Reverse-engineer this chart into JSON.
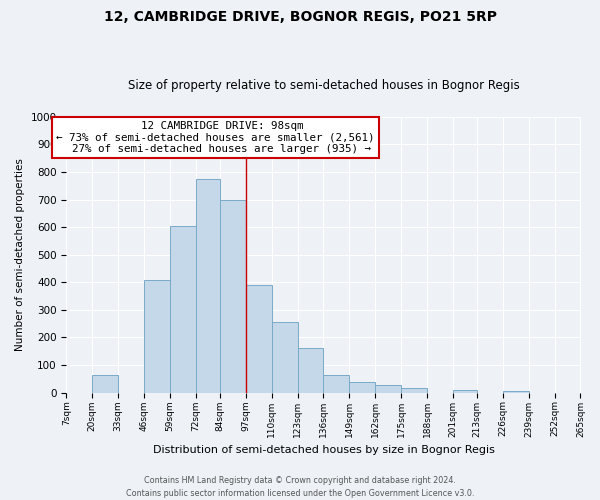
{
  "title": "12, CAMBRIDGE DRIVE, BOGNOR REGIS, PO21 5RP",
  "subtitle": "Size of property relative to semi-detached houses in Bognor Regis",
  "xlabel": "Distribution of semi-detached houses by size in Bognor Regis",
  "ylabel": "Number of semi-detached properties",
  "bin_edges": [
    7,
    20,
    33,
    46,
    59,
    72,
    84,
    97,
    110,
    123,
    136,
    149,
    162,
    175,
    188,
    201,
    213,
    226,
    239,
    252,
    265
  ],
  "bin_labels": [
    "7sqm",
    "20sqm",
    "33sqm",
    "46sqm",
    "59sqm",
    "72sqm",
    "84sqm",
    "97sqm",
    "110sqm",
    "123sqm",
    "136sqm",
    "149sqm",
    "162sqm",
    "175sqm",
    "188sqm",
    "201sqm",
    "213sqm",
    "226sqm",
    "239sqm",
    "252sqm",
    "265sqm"
  ],
  "counts": [
    0,
    65,
    0,
    410,
    605,
    775,
    700,
    390,
    255,
    162,
    65,
    40,
    28,
    18,
    0,
    10,
    0,
    5,
    0,
    0
  ],
  "bar_facecolor": "#c5d8ea",
  "bar_edgecolor": "#7aaac8",
  "property_line_x": 97,
  "property_size": 98,
  "property_label": "12 CAMBRIDGE DRIVE: 98sqm",
  "pct_smaller": 73,
  "n_smaller": 2561,
  "pct_larger": 27,
  "n_larger": 935,
  "ylim": [
    0,
    1000
  ],
  "yticks": [
    0,
    100,
    200,
    300,
    400,
    500,
    600,
    700,
    800,
    900,
    1000
  ],
  "annotation_box_edgecolor": "#cc0000",
  "annotation_box_facecolor": "#ffffff",
  "line_color": "#cc0000",
  "footer1": "Contains HM Land Registry data © Crown copyright and database right 2024.",
  "footer2": "Contains public sector information licensed under the Open Government Licence v3.0.",
  "bg_color": "#eef2f7",
  "title_fontsize": 10,
  "subtitle_fontsize": 8.5,
  "grid_color": "#ffffff"
}
